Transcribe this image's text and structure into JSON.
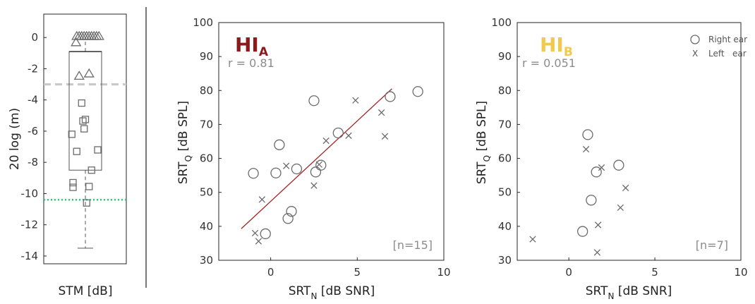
{
  "colors": {
    "hi_a_title": "#8b1a1a",
    "hi_b_title": "#f2c94c",
    "fit_line": "#a52222",
    "marker": "#6b6b6b",
    "ref_dash": "#c8c8c8",
    "ref_dot": "#2ecc71",
    "separator": "#777777"
  },
  "chart_data": [
    {
      "type": "box",
      "ylabel": "20 log (m)",
      "xlabel": "STM [dB]",
      "ylim": [
        -14.5,
        1.5
      ],
      "yticks": [
        "0",
        "-2",
        "-4",
        "-6",
        "-8",
        "-10",
        "-12",
        "-14"
      ],
      "ytick_values": [
        0,
        -2,
        -4,
        -6,
        -8,
        -10,
        -12,
        -14
      ],
      "box": {
        "q1": -8.5,
        "q3": -0.9,
        "median": -0.9,
        "whisker_low": -13.5,
        "whisker_high": 0
      },
      "reference_dashed": -3.0,
      "reference_dotted": -10.4,
      "triangles": [
        {
          "x": -0.35,
          "y": 0.1
        },
        {
          "x": -0.25,
          "y": 0.1
        },
        {
          "x": -0.15,
          "y": 0.1
        },
        {
          "x": -0.05,
          "y": 0.1
        },
        {
          "x": 0.05,
          "y": 0.1
        },
        {
          "x": 0.15,
          "y": 0.1
        },
        {
          "x": 0.25,
          "y": 0.1
        },
        {
          "x": 0.35,
          "y": 0.1
        },
        {
          "x": 0.45,
          "y": 0.1
        },
        {
          "x": 0.55,
          "y": 0.1
        },
        {
          "x": -0.38,
          "y": -0.3
        },
        {
          "x": -0.25,
          "y": -2.45
        },
        {
          "x": 0.15,
          "y": -2.3
        }
      ],
      "squares": [
        {
          "x": -0.15,
          "y": -4.2
        },
        {
          "x": -0.1,
          "y": -5.35
        },
        {
          "x": 0.0,
          "y": -5.25
        },
        {
          "x": -0.05,
          "y": -5.85
        },
        {
          "x": -0.55,
          "y": -6.2
        },
        {
          "x": 0.5,
          "y": -7.2
        },
        {
          "x": -0.35,
          "y": -7.3
        },
        {
          "x": 0.25,
          "y": -8.5
        },
        {
          "x": -0.5,
          "y": -9.3
        },
        {
          "x": -0.5,
          "y": -9.6
        },
        {
          "x": 0.15,
          "y": -9.55
        },
        {
          "x": 0.05,
          "y": -10.6
        }
      ]
    },
    {
      "type": "scatter",
      "title": "HI",
      "title_subscript": "A",
      "stat": "r = 0.81",
      "n_label": "[n=15]",
      "xlabel": {
        "main": "SRT",
        "sub": "N",
        "rest": " [dB SNR]"
      },
      "ylabel": {
        "main": "SRT",
        "sub": "Q",
        "rest": " [dB SPL]"
      },
      "xlim": [
        -3,
        10
      ],
      "ylim": [
        30,
        100
      ],
      "xticks": [
        "0",
        "5",
        "10"
      ],
      "yticks": [
        "30",
        "40",
        "50",
        "60",
        "70",
        "80",
        "90",
        "100"
      ],
      "fit_line": [
        [
          -1.7,
          39.3
        ],
        [
          7.0,
          80.5
        ]
      ],
      "right_ear": [
        [
          -1.0,
          55.6
        ],
        [
          -0.3,
          37.8
        ],
        [
          0.3,
          55.7
        ],
        [
          0.5,
          64.0
        ],
        [
          1.0,
          42.3
        ],
        [
          1.2,
          44.4
        ],
        [
          1.5,
          56.9
        ],
        [
          2.5,
          77.0
        ],
        [
          2.6,
          56.0
        ],
        [
          2.9,
          58.0
        ],
        [
          3.9,
          67.5
        ],
        [
          6.9,
          78.2
        ],
        [
          8.5,
          79.7
        ]
      ],
      "left_ear": [
        [
          -0.9,
          38.0
        ],
        [
          -0.7,
          35.6
        ],
        [
          -0.5,
          47.9
        ],
        [
          0.9,
          57.8
        ],
        [
          2.5,
          52.0
        ],
        [
          2.8,
          58.2
        ],
        [
          3.2,
          65.2
        ],
        [
          4.5,
          66.7
        ],
        [
          4.9,
          77.1
        ],
        [
          6.4,
          73.5
        ],
        [
          6.6,
          66.5
        ]
      ]
    },
    {
      "type": "scatter",
      "title": "HI",
      "title_subscript": "B",
      "stat": "r = 0.051",
      "n_label": "[n=7]",
      "legend": {
        "right_ear": "Right ear",
        "left_ear_symbol": "X",
        "left_ear": "Left   ear",
        "position": "top-right"
      },
      "xlabel": {
        "main": "SRT",
        "sub": "N",
        "rest": " [dB SNR]"
      },
      "ylabel": {
        "main": "SRT",
        "sub": "Q",
        "rest": " [dB SPL]"
      },
      "xlim": [
        -3,
        10
      ],
      "ylim": [
        30,
        100
      ],
      "xticks": [
        "0",
        "5",
        "10"
      ],
      "yticks": [
        "30",
        "40",
        "50",
        "60",
        "70",
        "80",
        "90",
        "100"
      ],
      "right_ear": [
        [
          0.8,
          38.5
        ],
        [
          1.1,
          67.0
        ],
        [
          1.3,
          47.7
        ],
        [
          1.6,
          56.0
        ],
        [
          2.9,
          58.0
        ]
      ],
      "left_ear": [
        [
          -2.1,
          36.2
        ],
        [
          1.0,
          62.7
        ],
        [
          1.7,
          40.4
        ],
        [
          1.9,
          57.3
        ],
        [
          1.65,
          32.3
        ],
        [
          3.0,
          45.5
        ],
        [
          3.3,
          51.3
        ]
      ]
    }
  ]
}
